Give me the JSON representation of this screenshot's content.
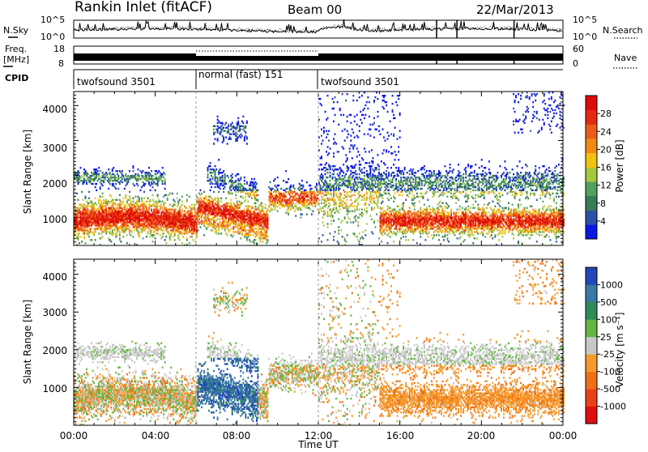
{
  "header": {
    "station": "Rankin Inlet (fitACF)",
    "beam": "Beam 00",
    "date": "22/Mar/2013"
  },
  "summary": {
    "nsky_label": "N.Sky",
    "nsky_ticks": [
      "10^5",
      "10^0"
    ],
    "nsearch_label": "N.Search",
    "nsearch_ticks": [
      "10^5",
      "10^0"
    ],
    "freq_label": "Freq.",
    "freq_unit": "[MHz]",
    "freq_ticks": [
      "18",
      "8"
    ],
    "nave_label": "Nave",
    "nave_ticks": [
      "60",
      "0"
    ],
    "cpid_label": "CPID",
    "cpid_segments": [
      {
        "name": "twofsound 3501",
        "start_hr": 0,
        "end_hr": 6
      },
      {
        "name": "normal (fast) 151",
        "start_hr": 6,
        "end_hr": 12
      },
      {
        "name": "twofsound 3501",
        "start_hr": 12,
        "end_hr": 24
      }
    ]
  },
  "axes": {
    "ylabel": "Slant Range [km]",
    "xlabel": "Time UT",
    "yticks": [
      "1000",
      "2000",
      "3000",
      "4000"
    ],
    "xticks": [
      "00:00",
      "04:00",
      "08:00",
      "12:00",
      "16:00",
      "20:00",
      "00:00"
    ]
  },
  "chart_data": [
    {
      "type": "heatmap",
      "panel": "power",
      "x_range_hours": [
        0,
        24
      ],
      "y_range_km": [
        180,
        4500
      ],
      "colorbar_label": "Power [dB]",
      "colorbar_ticks": [
        "4",
        "8",
        "12",
        "16",
        "20",
        "24",
        "28"
      ],
      "colorbar_range": [
        0,
        30
      ],
      "colors": [
        "#0a16e6",
        "#2b50a8",
        "#377c52",
        "#52a15e",
        "#a5c83c",
        "#f3c210",
        "#f08a15",
        "#ec5b1c",
        "#e52812",
        "#e00a08"
      ]
    },
    {
      "type": "heatmap",
      "panel": "velocity",
      "x_range_hours": [
        0,
        24
      ],
      "y_range_km": [
        180,
        4500
      ],
      "colorbar_label": "Velocity [m s⁻¹]",
      "colorbar_ticks": [
        "1000",
        "500",
        "100",
        "25",
        "-25",
        "-100",
        "-500",
        "-1000"
      ],
      "colors": [
        "#2346b8",
        "#3a78a6",
        "#2f8a5a",
        "#63b642",
        "#c8c8c8",
        "#f59a2c",
        "#f07018",
        "#e94018",
        "#e00e0e"
      ]
    }
  ]
}
